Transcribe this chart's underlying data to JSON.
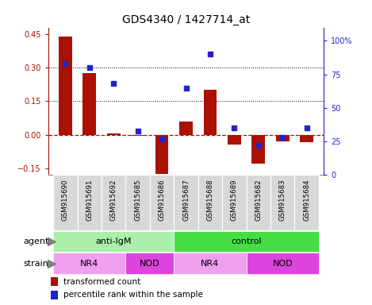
{
  "title": "GDS4340 / 1427714_at",
  "samples": [
    "GSM915690",
    "GSM915691",
    "GSM915692",
    "GSM915685",
    "GSM915686",
    "GSM915687",
    "GSM915688",
    "GSM915689",
    "GSM915682",
    "GSM915683",
    "GSM915684"
  ],
  "transformed_count": [
    0.44,
    0.275,
    0.005,
    -0.005,
    -0.175,
    0.06,
    0.2,
    -0.045,
    -0.13,
    -0.03,
    -0.035
  ],
  "percentile_rank": [
    83,
    80,
    68,
    33,
    27,
    65,
    90,
    35,
    22,
    28,
    35
  ],
  "ylim_left": [
    -0.18,
    0.48
  ],
  "ylim_right": [
    0,
    110
  ],
  "yticks_left": [
    -0.15,
    0.0,
    0.15,
    0.3,
    0.45
  ],
  "yticks_right": [
    0,
    25,
    50,
    75,
    100
  ],
  "ytick_labels_right": [
    "0",
    "25",
    "50",
    "75",
    "100%"
  ],
  "dotted_hlines": [
    0.15,
    0.3
  ],
  "bar_color": "#aa1100",
  "dot_color": "#2222cc",
  "agent_groups": [
    {
      "label": "anti-IgM",
      "start": 0,
      "end": 5,
      "color": "#aaf0aa"
    },
    {
      "label": "control",
      "start": 5,
      "end": 11,
      "color": "#44dd44"
    }
  ],
  "strain_groups": [
    {
      "label": "NR4",
      "start": 0,
      "end": 3,
      "color": "#f0a0f0"
    },
    {
      "label": "NOD",
      "start": 3,
      "end": 5,
      "color": "#dd44dd"
    },
    {
      "label": "NR4",
      "start": 5,
      "end": 8,
      "color": "#f0a0f0"
    },
    {
      "label": "NOD",
      "start": 8,
      "end": 11,
      "color": "#dd44dd"
    }
  ],
  "legend_bar_label": "transformed count",
  "legend_dot_label": "percentile rank within the sample",
  "agent_label": "agent",
  "strain_label": "strain",
  "background_color": "#ffffff",
  "sample_box_color": "#d8d8d8",
  "tick_label_color_left": "#aa1100",
  "tick_label_color_right": "#2222cc",
  "bar_width": 0.55
}
